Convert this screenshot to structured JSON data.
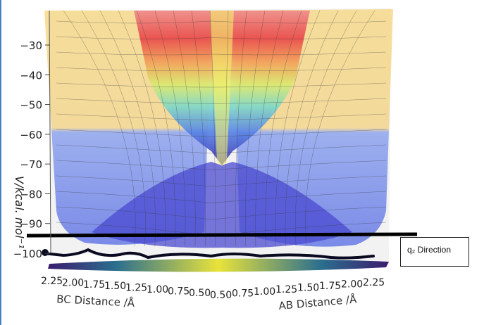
{
  "chart_data": {
    "type": "surface3d",
    "zlabel": "V/kcal. mol⁻¹",
    "xlabel_left": "BC Distance /Å",
    "xlabel_right": "AB Distance /Å",
    "z_ticks": [
      "−30",
      "−40",
      "−50",
      "−60",
      "−70",
      "−80",
      "−90",
      "−100"
    ],
    "z_values": [
      -30,
      -40,
      -50,
      -60,
      -70,
      -80,
      -90,
      -100
    ],
    "bc_ticks": [
      "2.25",
      "2.00",
      "1.75",
      "1.50",
      "1.25",
      "1.00",
      "0.75",
      "0.50"
    ],
    "ab_ticks": [
      "0.50",
      "0.75",
      "1.00",
      "1.25",
      "1.50",
      "1.75",
      "2.00",
      "2.25"
    ],
    "zlim": [
      -105,
      -25
    ],
    "annotation": "q₂ Direction",
    "colors": {
      "high": "#e8494a",
      "upper": "#f2a35a",
      "mid": "#e8e06a",
      "midlow": "#7ed8c8",
      "low": "#5a86e6",
      "lowest": "#3a2fb0",
      "line": "#000000",
      "contour_base": "#e9e33a"
    }
  }
}
